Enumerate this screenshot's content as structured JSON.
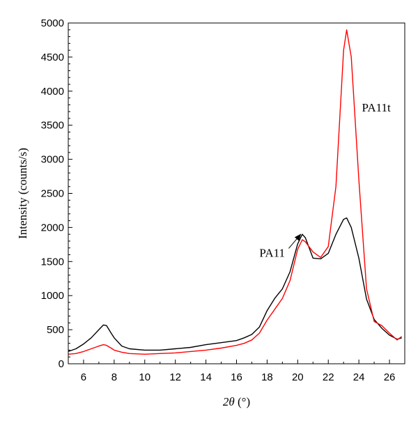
{
  "chart_data": {
    "type": "line",
    "xlabel_symbol": "2θ",
    "xlabel_unit": " (°)",
    "ylabel": "Intensity (counts/s)",
    "xlim": [
      5,
      27
    ],
    "ylim": [
      0,
      5000
    ],
    "x_ticks": [
      6,
      8,
      10,
      12,
      14,
      16,
      18,
      20,
      22,
      24,
      26
    ],
    "y_ticks": [
      0,
      500,
      1000,
      1500,
      2000,
      2500,
      3000,
      3500,
      4000,
      4500,
      5000
    ],
    "grid": false,
    "annotations": [
      {
        "text": "PA11t",
        "series": "PA11t",
        "at_x": 24.2,
        "at_y": 3700
      },
      {
        "text": "PA11",
        "series": "PA11",
        "at_x": 17.5,
        "at_y": 1570,
        "arrow_to": [
          20.2,
          1900
        ]
      }
    ],
    "series": [
      {
        "name": "PA11",
        "color": "#000000",
        "x": [
          5.0,
          5.5,
          6.0,
          6.5,
          7.0,
          7.3,
          7.5,
          7.8,
          8.0,
          8.5,
          9.0,
          10.0,
          11.0,
          12.0,
          13.0,
          14.0,
          15.0,
          16.0,
          16.5,
          17.0,
          17.5,
          18.0,
          18.5,
          19.0,
          19.5,
          20.0,
          20.3,
          20.5,
          21.0,
          21.5,
          22.0,
          22.5,
          23.0,
          23.2,
          23.5,
          24.0,
          24.5,
          25.0,
          25.5,
          26.0,
          26.5,
          26.8
        ],
        "values": [
          180,
          220,
          290,
          380,
          500,
          570,
          560,
          450,
          380,
          260,
          220,
          200,
          200,
          220,
          240,
          280,
          310,
          340,
          380,
          430,
          540,
          780,
          960,
          1100,
          1350,
          1760,
          1900,
          1850,
          1550,
          1540,
          1620,
          1900,
          2120,
          2140,
          2000,
          1550,
          950,
          650,
          520,
          420,
          360,
          380
        ]
      },
      {
        "name": "PA11t",
        "color": "#ff0000",
        "x": [
          5.0,
          5.5,
          6.0,
          6.5,
          7.0,
          7.3,
          7.5,
          7.8,
          8.0,
          8.5,
          9.0,
          10.0,
          11.0,
          12.0,
          13.0,
          14.0,
          15.0,
          16.0,
          16.5,
          17.0,
          17.5,
          18.0,
          18.5,
          19.0,
          19.5,
          20.0,
          20.3,
          20.5,
          21.0,
          21.5,
          22.0,
          22.5,
          23.0,
          23.2,
          23.5,
          24.0,
          24.5,
          25.0,
          25.5,
          26.0,
          26.5,
          26.8
        ],
        "values": [
          140,
          150,
          180,
          220,
          260,
          280,
          270,
          230,
          200,
          170,
          150,
          140,
          150,
          160,
          180,
          200,
          230,
          270,
          300,
          350,
          450,
          640,
          800,
          960,
          1220,
          1680,
          1820,
          1790,
          1640,
          1560,
          1720,
          2600,
          4600,
          4900,
          4500,
          2700,
          1100,
          620,
          560,
          450,
          350,
          400
        ]
      }
    ]
  }
}
